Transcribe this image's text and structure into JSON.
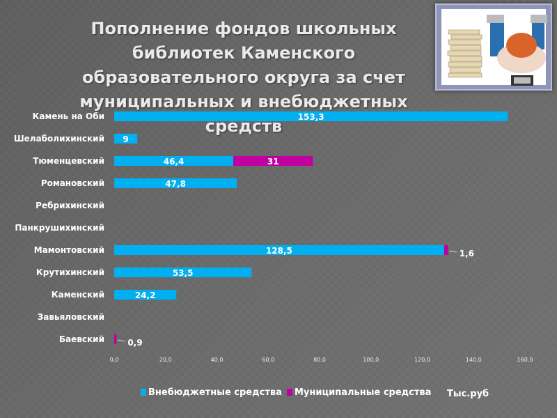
{
  "title": "Пополнение фондов школьных библиотек Каменского образовательного округа за счет муниципальных и внебюджетных средств",
  "colors": {
    "extra": "#00b0f0",
    "municipal": "#c000a0"
  },
  "chart_data": {
    "type": "bar",
    "orientation": "horizontal",
    "stacked": true,
    "categories": [
      "Камень на Оби",
      "Шелаболихинский",
      "Тюменцевский",
      "Романовский",
      "Ребрихинский",
      "Панкрушихинский",
      "Мамонтовский",
      "Крутихинский",
      "Каменский",
      "Завьяловский",
      "Баевский"
    ],
    "series": [
      {
        "name": "Внебюджетные средства",
        "values": [
          153.3,
          9,
          46.4,
          47.8,
          0,
          0,
          128.5,
          53.5,
          24.2,
          0,
          0
        ],
        "labels": [
          "153,3",
          "9",
          "46,4",
          "47,8",
          "",
          "",
          "128,5",
          "53,5",
          "24,2",
          "",
          ""
        ]
      },
      {
        "name": "Муниципальные средства",
        "values": [
          0,
          0,
          31,
          0,
          0,
          0,
          1.6,
          0,
          0,
          0,
          0.9
        ],
        "labels": [
          "",
          "",
          "31",
          "",
          "",
          "",
          "1,6",
          "",
          "",
          "",
          "0,9"
        ]
      }
    ],
    "xlim": [
      0,
      160
    ],
    "ticks": [
      "0,0",
      "20,0",
      "40,0",
      "60,0",
      "80,0",
      "100,0",
      "120,0",
      "140,0",
      "160,0"
    ],
    "unit": "Тыс.руб",
    "legend": "bottom"
  }
}
